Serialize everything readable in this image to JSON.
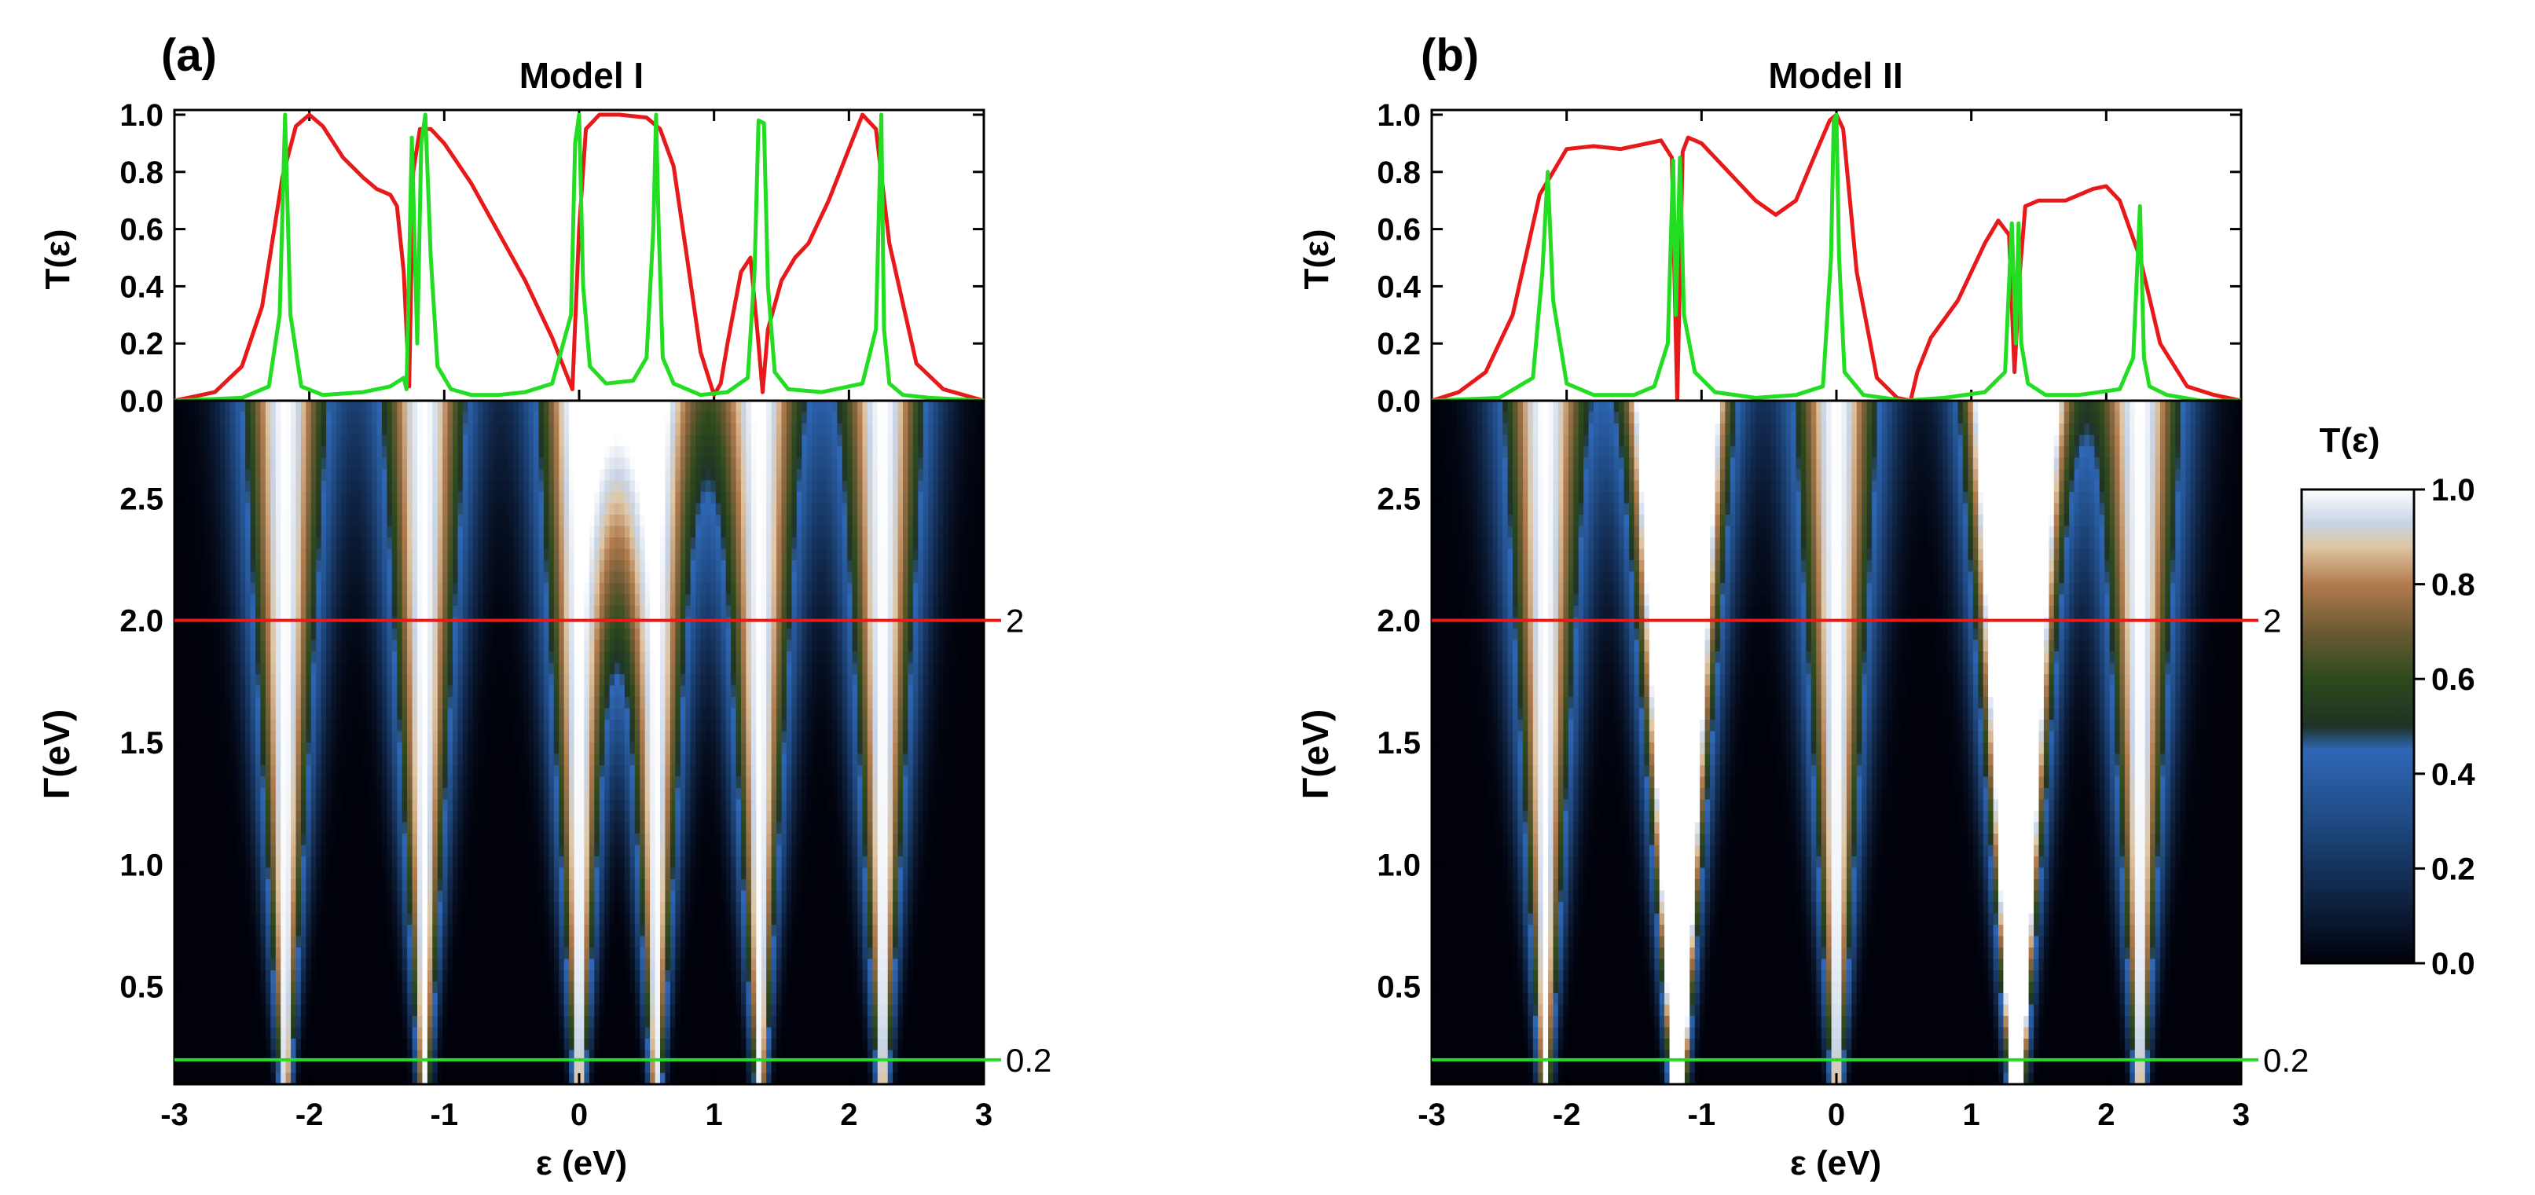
{
  "colors": {
    "red_curve": "#e8191a",
    "green_curve": "#22dd22",
    "red_line": "#e81a1a",
    "green_line": "#22dd22"
  },
  "colorbar": {
    "title": "T(ε)",
    "range": [
      0,
      1
    ],
    "ticks": [
      "0.0",
      "0.2",
      "0.4",
      "0.6",
      "0.8",
      "1.0"
    ],
    "stops": [
      {
        "t": 0.0,
        "color": "#00010a"
      },
      {
        "t": 0.1,
        "color": "#0b1a33"
      },
      {
        "t": 0.2,
        "color": "#15325c"
      },
      {
        "t": 0.3,
        "color": "#1f4a82"
      },
      {
        "t": 0.45,
        "color": "#2f67b6"
      },
      {
        "t": 0.5,
        "color": "#1f3326"
      },
      {
        "t": 0.6,
        "color": "#2d4a1c"
      },
      {
        "t": 0.7,
        "color": "#6b5a33"
      },
      {
        "t": 0.8,
        "color": "#b27b4e"
      },
      {
        "t": 0.88,
        "color": "#dfc6a4"
      },
      {
        "t": 0.93,
        "color": "#c8d4e6"
      },
      {
        "t": 1.0,
        "color": "#ffffff"
      }
    ]
  },
  "chart_data": [
    {
      "panel": "a",
      "panel_label": "(a)",
      "title": "Model I",
      "type": "line",
      "xlabel": "ε (eV)",
      "ylabel": "T(ε)",
      "xlim": [
        -3,
        3
      ],
      "ylim": [
        0,
        1
      ],
      "x_ticks": [
        "-3",
        "-2",
        "-1",
        "0",
        "1",
        "2",
        "3"
      ],
      "y_ticks": [
        "0.0",
        "0.2",
        "0.4",
        "0.6",
        "0.8",
        "1.0"
      ],
      "series": [
        {
          "name": "Γ = 2",
          "color": "red",
          "x": [
            -3.0,
            -2.7,
            -2.5,
            -2.35,
            -2.2,
            -2.1,
            -2.0,
            -1.9,
            -1.75,
            -1.6,
            -1.5,
            -1.4,
            -1.35,
            -1.3,
            -1.26,
            -1.23,
            -1.18,
            -1.1,
            -1.0,
            -0.8,
            -0.6,
            -0.4,
            -0.2,
            -0.1,
            -0.05,
            0.0,
            0.05,
            0.15,
            0.3,
            0.5,
            0.6,
            0.7,
            0.8,
            0.9,
            1.0,
            1.05,
            1.1,
            1.2,
            1.27,
            1.32,
            1.36,
            1.4,
            1.5,
            1.6,
            1.7,
            1.85,
            2.0,
            2.1,
            2.2,
            2.3,
            2.5,
            2.7,
            3.0
          ],
          "y": [
            0.0,
            0.03,
            0.12,
            0.33,
            0.78,
            0.96,
            1.0,
            0.96,
            0.85,
            0.78,
            0.74,
            0.72,
            0.68,
            0.45,
            0.05,
            0.8,
            0.95,
            0.95,
            0.9,
            0.76,
            0.59,
            0.42,
            0.22,
            0.1,
            0.04,
            0.6,
            0.95,
            1.0,
            1.0,
            0.99,
            0.95,
            0.82,
            0.5,
            0.17,
            0.02,
            0.06,
            0.2,
            0.45,
            0.5,
            0.25,
            0.03,
            0.25,
            0.42,
            0.5,
            0.55,
            0.7,
            0.88,
            1.0,
            0.95,
            0.55,
            0.13,
            0.04,
            0.0
          ]
        },
        {
          "name": "Γ = 0.2",
          "color": "green",
          "x": [
            -3.0,
            -2.5,
            -2.3,
            -2.22,
            -2.18,
            -2.14,
            -2.06,
            -1.9,
            -1.6,
            -1.4,
            -1.3,
            -1.28,
            -1.24,
            -1.2,
            -1.17,
            -1.14,
            -1.1,
            -1.05,
            -0.95,
            -0.8,
            -0.6,
            -0.4,
            -0.2,
            -0.06,
            -0.03,
            0.0,
            0.03,
            0.08,
            0.2,
            0.4,
            0.5,
            0.55,
            0.57,
            0.59,
            0.62,
            0.7,
            0.9,
            1.1,
            1.25,
            1.3,
            1.33,
            1.37,
            1.4,
            1.45,
            1.55,
            1.8,
            2.1,
            2.2,
            2.24,
            2.26,
            2.3,
            2.4,
            2.6,
            3.0
          ],
          "y": [
            0.0,
            0.01,
            0.05,
            0.3,
            1.0,
            0.3,
            0.05,
            0.02,
            0.03,
            0.05,
            0.08,
            0.04,
            0.92,
            0.2,
            0.9,
            1.0,
            0.5,
            0.12,
            0.04,
            0.02,
            0.02,
            0.03,
            0.06,
            0.3,
            0.9,
            1.0,
            0.4,
            0.12,
            0.06,
            0.07,
            0.15,
            0.6,
            1.0,
            0.6,
            0.15,
            0.06,
            0.02,
            0.03,
            0.08,
            0.45,
            0.98,
            0.97,
            0.4,
            0.1,
            0.04,
            0.03,
            0.06,
            0.25,
            1.0,
            0.25,
            0.06,
            0.02,
            0.01,
            0.0
          ]
        }
      ],
      "heatmap": {
        "xlabel": "ε (eV)",
        "ylabel": "Γ(eV)",
        "xlim": [
          -3,
          3
        ],
        "ylim": [
          0.1,
          2.9
        ],
        "x_ticks": [
          "-3",
          "-2",
          "-1",
          "0",
          "1",
          "2",
          "3"
        ],
        "y_ticks": [
          "0.5",
          "1.0",
          "1.5",
          "2.0",
          "2.5"
        ],
        "resonances": [
          {
            "e": -2.18,
            "k": 0.0
          },
          {
            "e": -1.15,
            "k": 0.0
          },
          {
            "e": 0.0,
            "k": 0.0
          },
          {
            "e": 0.57,
            "k": 0.0
          },
          {
            "e": 1.34,
            "k": 0.0
          },
          {
            "e": 2.25,
            "k": 0.0
          }
        ],
        "lines": [
          {
            "gamma": 2.0,
            "label": "2",
            "color": "red"
          },
          {
            "gamma": 0.2,
            "label": "0.2",
            "color": "green"
          }
        ]
      }
    },
    {
      "panel": "b",
      "panel_label": "(b)",
      "title": "Model II",
      "type": "line",
      "xlabel": "ε (eV)",
      "ylabel": "T(ε)",
      "xlim": [
        -3,
        3
      ],
      "ylim": [
        0,
        1
      ],
      "x_ticks": [
        "-3",
        "-2",
        "-1",
        "0",
        "1",
        "2",
        "3"
      ],
      "y_ticks": [
        "0.0",
        "0.2",
        "0.4",
        "0.6",
        "0.8",
        "1.0"
      ],
      "series": [
        {
          "name": "Γ = 2",
          "color": "red",
          "x": [
            -3.0,
            -2.8,
            -2.6,
            -2.4,
            -2.2,
            -2.0,
            -1.8,
            -1.6,
            -1.4,
            -1.3,
            -1.22,
            -1.18,
            -1.14,
            -1.1,
            -1.0,
            -0.8,
            -0.6,
            -0.45,
            -0.3,
            -0.15,
            -0.05,
            0.0,
            0.05,
            0.15,
            0.3,
            0.45,
            0.55,
            0.6,
            0.7,
            0.9,
            1.1,
            1.2,
            1.28,
            1.32,
            1.36,
            1.4,
            1.5,
            1.7,
            1.9,
            2.0,
            2.1,
            2.25,
            2.4,
            2.6,
            2.8,
            3.0
          ],
          "y": [
            0.0,
            0.03,
            0.1,
            0.3,
            0.72,
            0.88,
            0.89,
            0.88,
            0.9,
            0.91,
            0.85,
            0.0,
            0.87,
            0.92,
            0.9,
            0.8,
            0.7,
            0.65,
            0.7,
            0.87,
            0.98,
            1.0,
            0.95,
            0.45,
            0.08,
            0.01,
            0.0,
            0.1,
            0.22,
            0.35,
            0.55,
            0.63,
            0.58,
            0.1,
            0.45,
            0.68,
            0.7,
            0.7,
            0.74,
            0.75,
            0.7,
            0.5,
            0.2,
            0.05,
            0.02,
            0.0
          ]
        },
        {
          "name": "Γ = 0.2",
          "color": "green",
          "x": [
            -3.0,
            -2.5,
            -2.25,
            -2.18,
            -2.14,
            -2.1,
            -2.0,
            -1.8,
            -1.5,
            -1.35,
            -1.25,
            -1.21,
            -1.19,
            -1.16,
            -1.13,
            -1.05,
            -0.9,
            -0.6,
            -0.3,
            -0.1,
            -0.04,
            -0.02,
            0.0,
            0.02,
            0.06,
            0.2,
            0.5,
            0.8,
            1.1,
            1.25,
            1.3,
            1.33,
            1.35,
            1.37,
            1.42,
            1.55,
            1.8,
            2.1,
            2.2,
            2.25,
            2.28,
            2.32,
            2.45,
            2.7,
            3.0
          ],
          "y": [
            0.0,
            0.01,
            0.08,
            0.45,
            0.8,
            0.35,
            0.06,
            0.02,
            0.02,
            0.05,
            0.2,
            0.84,
            0.3,
            0.85,
            0.3,
            0.1,
            0.03,
            0.01,
            0.02,
            0.05,
            0.5,
            0.98,
            1.0,
            0.5,
            0.1,
            0.02,
            0.0,
            0.01,
            0.03,
            0.1,
            0.62,
            0.2,
            0.62,
            0.2,
            0.06,
            0.02,
            0.02,
            0.04,
            0.15,
            0.68,
            0.15,
            0.05,
            0.02,
            0.0,
            0.0
          ]
        }
      ],
      "heatmap": {
        "xlabel": "ε (eV)",
        "ylabel": "Γ(eV)",
        "xlim": [
          -3,
          3
        ],
        "ylim": [
          0.1,
          2.9
        ],
        "x_ticks": [
          "-3",
          "-2",
          "-1",
          "0",
          "1",
          "2",
          "3"
        ],
        "y_ticks": [
          "0.5",
          "1.0",
          "1.5",
          "2.0",
          "2.5"
        ],
        "resonances": [
          {
            "e": -2.16,
            "k": 0.0
          },
          {
            "e": -1.2,
            "k": 0.0
          },
          {
            "e": -1.15,
            "k": 0.0
          },
          {
            "e": 0.0,
            "k": 0.0
          },
          {
            "e": 1.31,
            "k": 0.0
          },
          {
            "e": 1.36,
            "k": 0.0
          },
          {
            "e": 2.25,
            "k": 0.0
          }
        ],
        "lines": [
          {
            "gamma": 2.0,
            "label": "2",
            "color": "red"
          },
          {
            "gamma": 0.2,
            "label": "0.2",
            "color": "green"
          }
        ]
      }
    }
  ]
}
